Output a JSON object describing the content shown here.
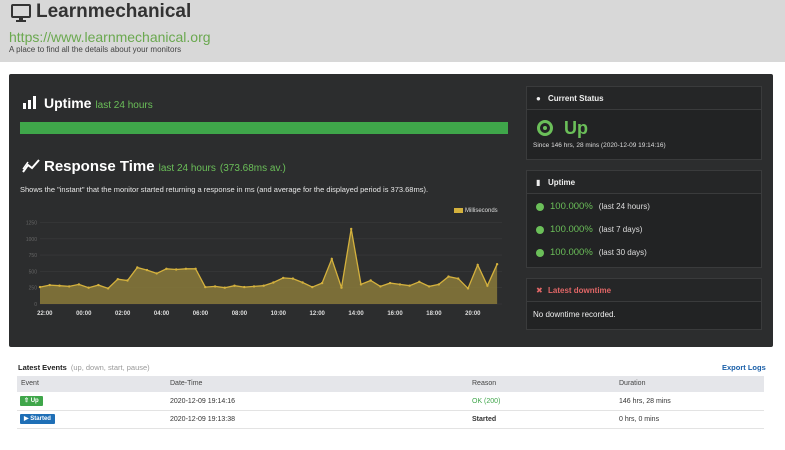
{
  "header": {
    "title": "Learnmechanical",
    "url": "https://www.learnmechanical.org",
    "description": "A place to find all the details about your monitors",
    "icon": "monitor-icon"
  },
  "uptime_section": {
    "title": "Uptime",
    "subtitle": "last 24 hours",
    "bar_percent": 100,
    "bar_color": "#3fa64a"
  },
  "response_section": {
    "title": "Response Time",
    "subtitle": "last 24 hours",
    "average": "(373.68ms av.)",
    "description": "Shows the \"instant\" that the monitor started returning a response in ms (and average for the displayed period is 373.68ms)."
  },
  "chart_data": {
    "type": "area",
    "legend": {
      "label": "Milliseconds",
      "position": "top-right"
    },
    "x_ticks": [
      "22:00",
      "00:00",
      "02:00",
      "04:00",
      "06:00",
      "08:00",
      "10:00",
      "12:00",
      "14:00",
      "16:00",
      "18:00",
      "20:00"
    ],
    "y_ticks": [
      0,
      250,
      500,
      750,
      1000,
      1250
    ],
    "ylim": [
      0,
      1350
    ],
    "x_hours_start": "21:45",
    "series": [
      {
        "color": "#d4b13d",
        "x": [
          0,
          0.5,
          1,
          1.5,
          2,
          2.5,
          3,
          3.5,
          4,
          4.5,
          5,
          5.5,
          6,
          6.5,
          7,
          7.5,
          8,
          8.5,
          9,
          9.5,
          10,
          10.5,
          11,
          11.5,
          12,
          12.5,
          13,
          13.5,
          14,
          14.5,
          15,
          15.5,
          16,
          16.5,
          17,
          17.5,
          18,
          18.5,
          19,
          19.5,
          20,
          20.5,
          21,
          21.5,
          22,
          22.5,
          23,
          23.5
        ],
        "y": [
          260,
          290,
          280,
          270,
          300,
          250,
          290,
          240,
          380,
          360,
          560,
          520,
          470,
          540,
          530,
          540,
          540,
          260,
          270,
          250,
          280,
          260,
          270,
          280,
          330,
          400,
          390,
          330,
          260,
          320,
          690,
          250,
          1150,
          300,
          360,
          270,
          320,
          300,
          280,
          340,
          270,
          300,
          420,
          390,
          240,
          600,
          280,
          610
        ]
      }
    ]
  },
  "status_box": {
    "title": "Current Status",
    "status": "Up",
    "since": "Since 146 hrs, 28 mins (2020-12-09 19:14:16)"
  },
  "uptime_box": {
    "title": "Uptime",
    "rows": [
      {
        "percent": "100.000%",
        "period": "(last 24 hours)"
      },
      {
        "percent": "100.000%",
        "period": "(last 7 days)"
      },
      {
        "percent": "100.000%",
        "period": "(last 30 days)"
      }
    ]
  },
  "downtime_box": {
    "title": "Latest downtime",
    "text": "No downtime recorded."
  },
  "events": {
    "title": "Latest Events",
    "subtitle": "(up, down, start, pause)",
    "export_label": "Export Logs",
    "columns": [
      "Event",
      "Date-Time",
      "Reason",
      "Duration"
    ],
    "rows": [
      {
        "event": "Up",
        "datetime": "2020-12-09 19:14:16",
        "reason": "OK (200)",
        "duration": "146 hrs, 28 mins"
      },
      {
        "event": "Started",
        "datetime": "2020-12-09 19:13:38",
        "reason": "Started",
        "duration": "0 hrs, 0 mins"
      }
    ]
  }
}
